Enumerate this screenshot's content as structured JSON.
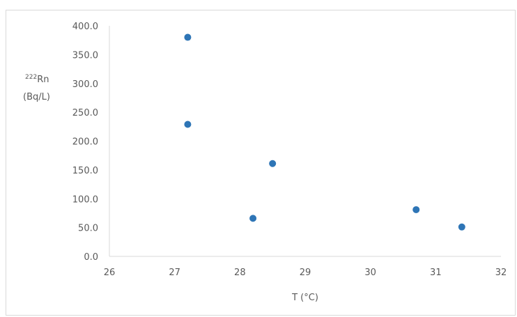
{
  "chart_data": {
    "type": "scatter",
    "title": "",
    "xlabel": "T (°C)",
    "ylabel_sup": "222",
    "ylabel_main": "Rn",
    "ylabel_unit": "(Bq/L)",
    "xlim": [
      26,
      32
    ],
    "ylim": [
      0,
      400
    ],
    "x_ticks": [
      "26",
      "27",
      "28",
      "29",
      "30",
      "31",
      "32"
    ],
    "y_ticks": [
      "0.0",
      "50.0",
      "100.0",
      "150.0",
      "200.0",
      "250.0",
      "300.0",
      "350.0",
      "400.0"
    ],
    "marker_color": "#2E75B6",
    "points": [
      {
        "x": 27.2,
        "y": 380
      },
      {
        "x": 27.2,
        "y": 229
      },
      {
        "x": 28.2,
        "y": 66
      },
      {
        "x": 28.5,
        "y": 161
      },
      {
        "x": 30.7,
        "y": 81
      },
      {
        "x": 31.4,
        "y": 51
      }
    ]
  }
}
